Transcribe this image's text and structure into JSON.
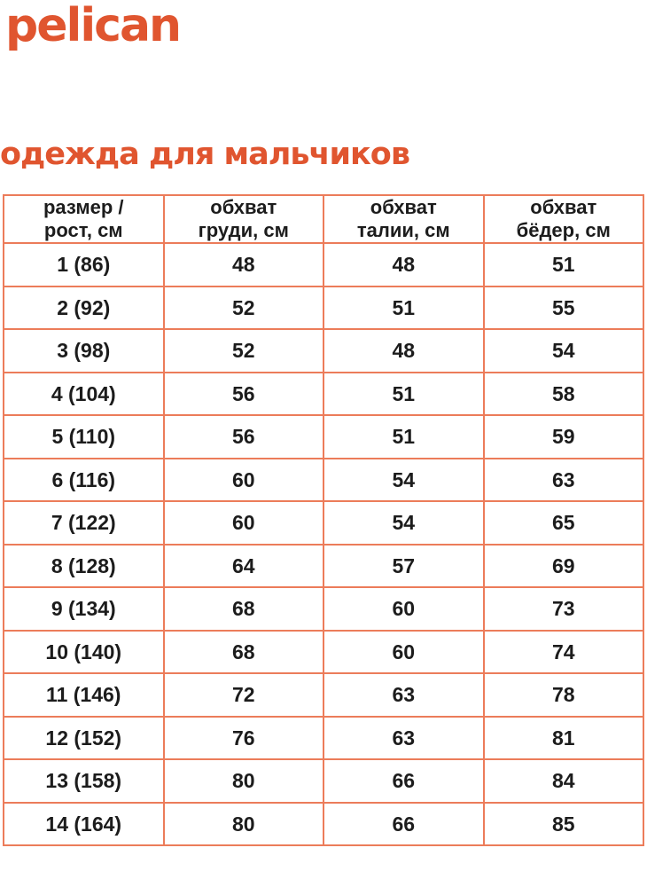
{
  "brand": {
    "logo_text": "pelican"
  },
  "page": {
    "title": "одежда для мальчиков"
  },
  "colors": {
    "accent": "#E0552F",
    "table_border": "#EC7C5A",
    "text": "#1C1C1C"
  },
  "table": {
    "headers": [
      {
        "line1": "размер /",
        "line2": "рост, см"
      },
      {
        "line1": "обхват",
        "line2": "груди, см"
      },
      {
        "line1": "обхват",
        "line2": "талии, см"
      },
      {
        "line1": "обхват",
        "line2": "бёдер, см"
      }
    ],
    "rows": [
      [
        "1 (86)",
        "48",
        "48",
        "51"
      ],
      [
        "2 (92)",
        "52",
        "51",
        "55"
      ],
      [
        "3 (98)",
        "52",
        "48",
        "54"
      ],
      [
        "4 (104)",
        "56",
        "51",
        "58"
      ],
      [
        "5 (110)",
        "56",
        "51",
        "59"
      ],
      [
        "6 (116)",
        "60",
        "54",
        "63"
      ],
      [
        "7 (122)",
        "60",
        "54",
        "65"
      ],
      [
        "8 (128)",
        "64",
        "57",
        "69"
      ],
      [
        "9 (134)",
        "68",
        "60",
        "73"
      ],
      [
        "10 (140)",
        "68",
        "60",
        "74"
      ],
      [
        "11 (146)",
        "72",
        "63",
        "78"
      ],
      [
        "12 (152)",
        "76",
        "63",
        "81"
      ],
      [
        "13 (158)",
        "80",
        "66",
        "84"
      ],
      [
        "14 (164)",
        "80",
        "66",
        "85"
      ]
    ]
  },
  "chart_data": {
    "type": "table",
    "title": "одежда для мальчиков",
    "columns": [
      "размер / рост, см",
      "обхват груди, см",
      "обхват талии, см",
      "обхват бёдер, см"
    ],
    "rows": [
      [
        "1 (86)",
        48,
        48,
        51
      ],
      [
        "2 (92)",
        52,
        51,
        55
      ],
      [
        "3 (98)",
        52,
        48,
        54
      ],
      [
        "4 (104)",
        56,
        51,
        58
      ],
      [
        "5 (110)",
        56,
        51,
        59
      ],
      [
        "6 (116)",
        60,
        54,
        63
      ],
      [
        "7 (122)",
        60,
        54,
        65
      ],
      [
        "8 (128)",
        64,
        57,
        69
      ],
      [
        "9 (134)",
        68,
        60,
        73
      ],
      [
        "10 (140)",
        68,
        60,
        74
      ],
      [
        "11 (146)",
        72,
        63,
        78
      ],
      [
        "12 (152)",
        76,
        63,
        81
      ],
      [
        "13 (158)",
        80,
        66,
        84
      ],
      [
        "14 (164)",
        80,
        66,
        85
      ]
    ]
  }
}
